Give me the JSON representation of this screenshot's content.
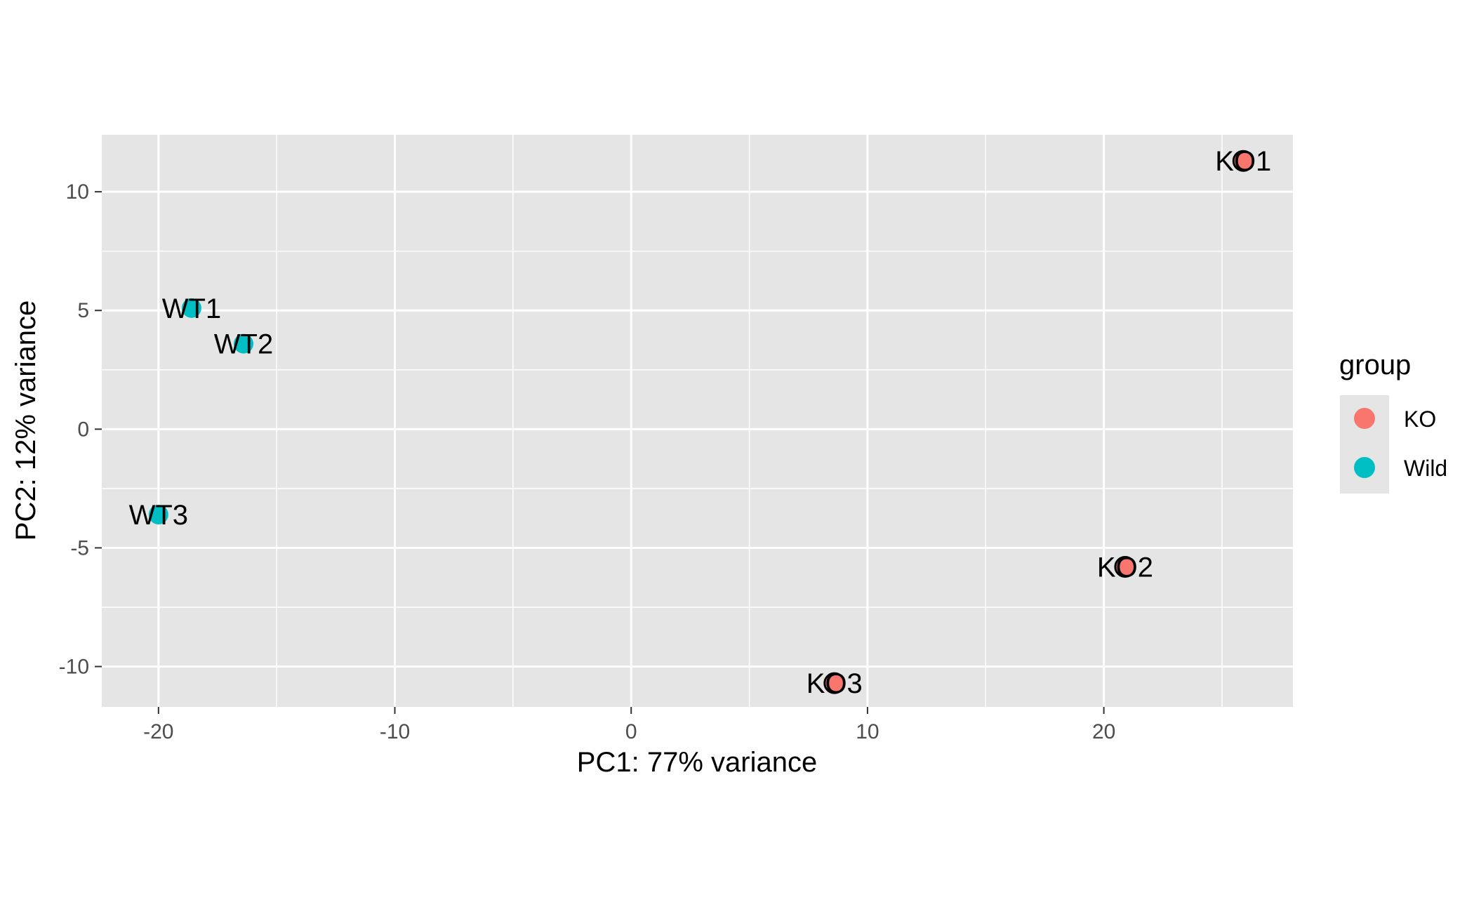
{
  "chart_data": {
    "type": "scatter",
    "title": "",
    "xlabel": "PC1: 77% variance",
    "ylabel": "PC2: 12% variance",
    "xlim": [
      -22.4,
      28.0
    ],
    "ylim": [
      -11.7,
      12.4
    ],
    "x_ticks": [
      -20,
      -10,
      0,
      10,
      20
    ],
    "y_ticks": [
      -10,
      -5,
      0,
      5,
      10
    ],
    "x_tick_labels": [
      "-20",
      "-10",
      "0",
      "10",
      "20"
    ],
    "y_tick_labels": [
      "-10",
      "-5",
      "0",
      "5",
      "10"
    ],
    "grid": true,
    "legend": {
      "title": "group",
      "position": "right",
      "entries": [
        {
          "label": "KO",
          "color": "#F8766D"
        },
        {
          "label": "Wild",
          "color": "#00BFC4"
        }
      ]
    },
    "series": [
      {
        "name": "KO",
        "color": "#F8766D",
        "points": [
          {
            "label": "KO1",
            "x": 25.9,
            "y": 11.3
          },
          {
            "label": "KO2",
            "x": 20.9,
            "y": -5.8
          },
          {
            "label": "KO3",
            "x": 8.6,
            "y": -10.7
          }
        ]
      },
      {
        "name": "Wild",
        "color": "#00BFC4",
        "points": [
          {
            "label": "WT1",
            "x": -18.6,
            "y": 5.1
          },
          {
            "label": "WT2",
            "x": -16.4,
            "y": 3.6
          },
          {
            "label": "WT3",
            "x": -20.0,
            "y": -3.6
          }
        ]
      }
    ]
  },
  "colors": {
    "panel_background": "#E5E5E5",
    "grid_line": "#FFFFFF",
    "axis_text": "#4D4D4D",
    "label_text": "#000000"
  }
}
